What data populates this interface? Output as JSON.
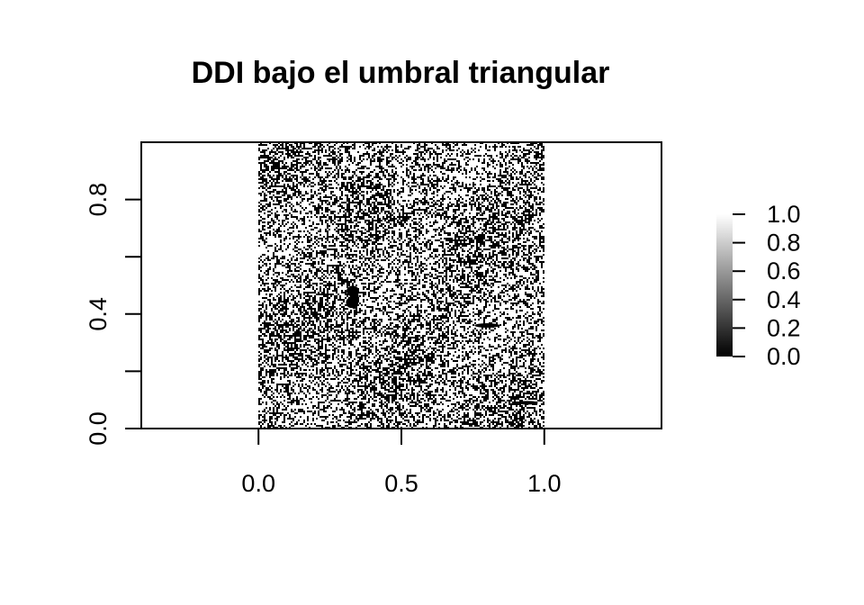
{
  "chart_data": {
    "type": "heatmap",
    "title": "DDI bajo el umbral triangular",
    "xlabel": "",
    "ylabel": "",
    "xlim": [
      -0.41,
      1.41
    ],
    "ylim": [
      0.0,
      1.0
    ],
    "image_extent": {
      "x": [
        0.0,
        1.0
      ],
      "y": [
        0.0,
        1.0
      ]
    },
    "x_ticks": [
      0.0,
      0.5,
      1.0
    ],
    "x_tick_labels": [
      "0.0",
      "0.5",
      "1.0"
    ],
    "y_ticks": [
      0.0,
      0.2,
      0.4,
      0.6,
      0.8
    ],
    "y_tick_labels": [
      "0.0",
      "",
      "0.4",
      "",
      "0.8"
    ],
    "value_range": [
      0.0,
      1.0
    ],
    "colormap": {
      "low": "#000000",
      "high": "#ffffff"
    },
    "texture": "binary speckle of black and white pixels over the unit square (thresholded image); scattered darker clusters near (0.32, 0.47) and (0.8, 0.36)",
    "grid": false,
    "legend": {
      "placement": "right",
      "ticks": [
        0.0,
        0.2,
        0.4,
        0.6,
        0.8,
        1.0
      ],
      "tick_labels": [
        "0.0",
        "0.2",
        "0.4",
        "0.6",
        "0.8",
        "1.0"
      ]
    }
  }
}
